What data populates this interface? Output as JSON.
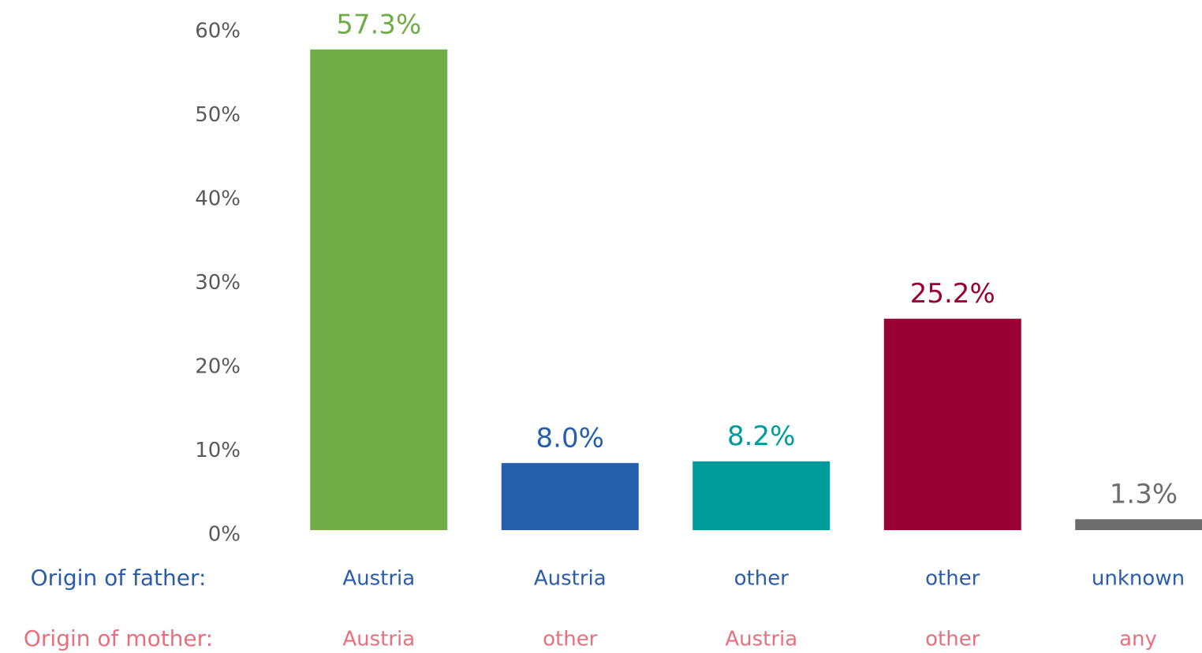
{
  "chart_data": {
    "type": "bar",
    "values": [
      57.3,
      8.0,
      8.2,
      25.2,
      1.3
    ],
    "value_labels": [
      "57.3%",
      "8.0%",
      "8.2%",
      "25.2%",
      "1.3%"
    ],
    "colors": [
      "#70ad47",
      "#255eab",
      "#009b9b",
      "#990033",
      "#6d6d6d"
    ],
    "category_rows": [
      {
        "name": "Origin of father:",
        "color": "#2a5caa",
        "labels": [
          "Austria",
          "Austria",
          "other",
          "other",
          "unknown"
        ]
      },
      {
        "name": "Origin of mother:",
        "color": "#e8707e",
        "labels": [
          "Austria",
          "other",
          "Austria",
          "other",
          "any"
        ]
      }
    ],
    "ylim": [
      0,
      60
    ],
    "yticks": [
      {
        "value": 0,
        "label": "0%"
      },
      {
        "value": 10,
        "label": "10%"
      },
      {
        "value": 20,
        "label": "20%"
      },
      {
        "value": 30,
        "label": "30%"
      },
      {
        "value": 40,
        "label": "40%"
      },
      {
        "value": 50,
        "label": "50%"
      },
      {
        "value": 60,
        "label": "60%"
      }
    ],
    "grid": false
  }
}
